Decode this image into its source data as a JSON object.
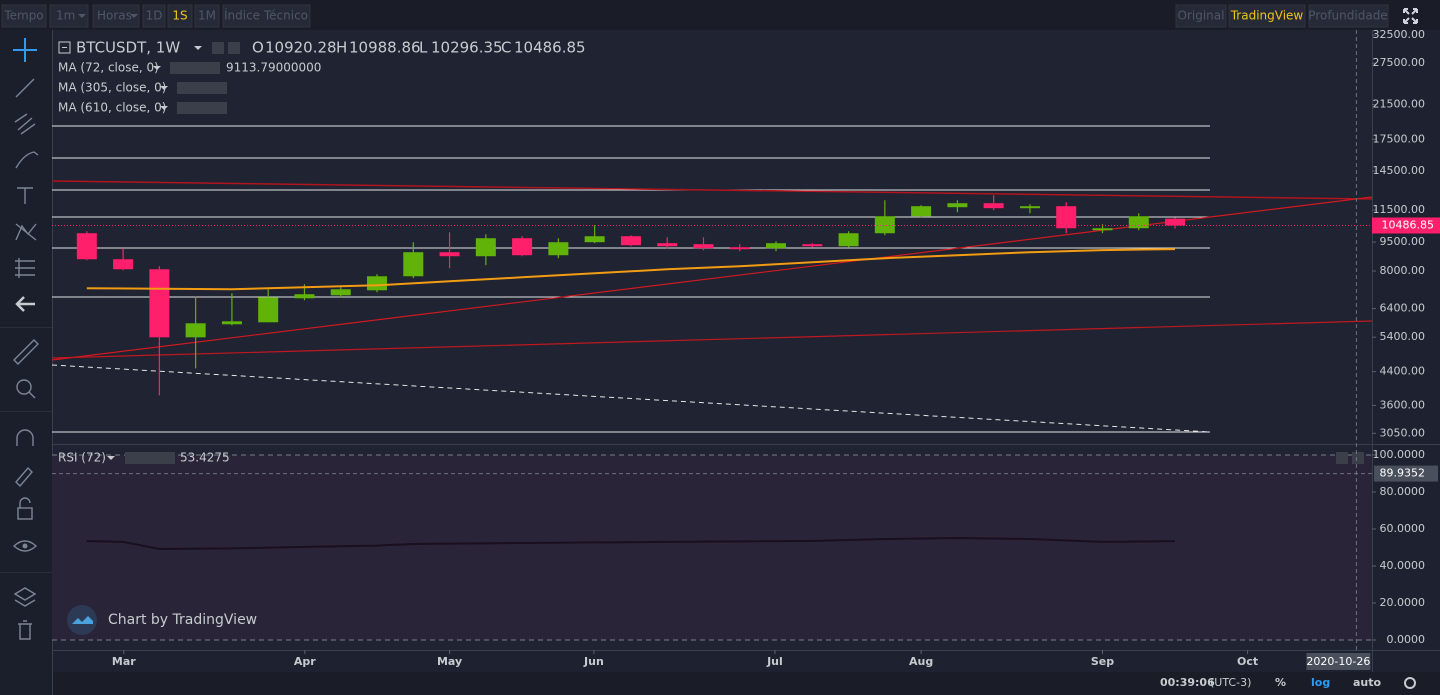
{
  "toolbar": {
    "left": [
      "Tempo",
      "1m",
      "Horas",
      "1D",
      "1S",
      "1M",
      "Índice Técnico"
    ],
    "left_active": 4,
    "right": [
      "Original",
      "TradingView",
      "Profundidade"
    ],
    "right_active": 1
  },
  "chart_data": [
    {
      "type": "candlestick",
      "title": "BTCUSDT, 1W",
      "legend_labels": [
        "O",
        "H",
        "L",
        "C"
      ],
      "x": [
        0,
        1,
        2,
        3,
        4,
        5,
        6,
        7,
        8,
        9,
        10,
        11,
        12,
        13,
        14,
        15,
        16,
        17,
        18,
        19,
        20,
        21,
        22,
        23,
        24,
        25,
        26,
        27,
        28,
        29,
        30
      ],
      "open": [
        10014,
        8581,
        8085,
        5396,
        5831,
        5900,
        6805,
        6927,
        7136,
        7755,
        8947,
        8736,
        9722,
        8788,
        9495,
        9838,
        9439,
        9383,
        9216,
        9162,
        9383,
        9270,
        10014,
        11080,
        11690,
        11971,
        11622,
        11760,
        10194,
        10316,
        10920.28
      ],
      "high": [
        10133,
        9162,
        8231,
        6886,
        7012,
        7179,
        7394,
        7265,
        7849,
        9495,
        10074,
        9955,
        9838,
        9722,
        10504,
        9896,
        9780,
        9780,
        9383,
        9551,
        9439,
        10133,
        12185,
        11830,
        12185,
        12556,
        11900,
        12041,
        10566,
        11278,
        10988.86
      ],
      "low": [
        8529,
        8037,
        3823,
        4487,
        5796,
        5900,
        6725,
        6845,
        7053,
        7664,
        8132,
        8282,
        8736,
        8632,
        9439,
        9270,
        9162,
        9054,
        9000,
        9000,
        9216,
        9216,
        9896,
        11015,
        11346,
        11483,
        11278,
        10014,
        10014,
        10194,
        10296.35
      ],
      "close": [
        8581,
        8085,
        5396,
        5865,
        5935,
        6845,
        6970,
        7179,
        7755,
        8947,
        8736,
        9722,
        8788,
        9495,
        9838,
        9328,
        9270,
        9162,
        9107,
        9439,
        9270,
        10014,
        11080,
        11760,
        11971,
        11622,
        11760,
        10316,
        10316,
        11080,
        10486.85
      ],
      "up_color": "#62b309",
      "down_color": "#ff1f6b",
      "log": true,
      "ylim": [
        2880,
        33500
      ],
      "yticks": [
        {
          "value": 32500,
          "label": "32500.00"
        },
        {
          "value": 27500,
          "label": "27500.00"
        },
        {
          "value": 21500,
          "label": "21500.00"
        },
        {
          "value": 17500,
          "label": "17500.00"
        },
        {
          "value": 14500,
          "label": "14500.00"
        },
        {
          "value": 11500,
          "label": "11500.00"
        },
        {
          "value": 9500,
          "label": "9500.00"
        },
        {
          "value": 8000,
          "label": "8000.00"
        },
        {
          "value": 6400,
          "label": "6400.00"
        },
        {
          "value": 5400,
          "label": "5400.00"
        },
        {
          "value": 4400,
          "label": "4400.00"
        },
        {
          "value": 3600,
          "label": "3600.00"
        },
        {
          "value": 3050,
          "label": "3050.00"
        }
      ],
      "xlim": [
        -0.96,
        35.43
      ],
      "xticks": [
        {
          "value": 1.02,
          "label": "Mar"
        },
        {
          "value": 6.01,
          "label": "Apr"
        },
        {
          "value": 10.0,
          "label": "May"
        },
        {
          "value": 13.98,
          "label": "Jun"
        },
        {
          "value": 18.97,
          "label": "Jul"
        },
        {
          "value": 23.0,
          "label": "Aug"
        },
        {
          "value": 28.0,
          "label": "Sep"
        },
        {
          "value": 32.0,
          "label": "Oct"
        }
      ],
      "indicators": [
        {
          "name": "MA (72, close, 0)",
          "color": "#f39c12",
          "x": [
            0,
            4,
            6,
            8,
            10,
            12,
            14,
            16,
            18,
            20,
            22,
            24,
            26,
            28,
            30
          ],
          "values": [
            7222,
            7180,
            7265,
            7352,
            7528,
            7709,
            7894,
            8085,
            8231,
            8430,
            8632,
            8788,
            8947,
            9060,
            9113.79
          ],
          "value_labels": [
            null,
            null,
            null,
            null,
            null,
            null,
            null,
            null,
            null,
            null,
            null,
            null,
            null,
            null,
            "9113.79000000"
          ]
        },
        {
          "name": "MA (305, close, 0)"
        },
        {
          "name": "MA (610, close, 0)"
        }
      ],
      "crosshair": {
        "x": 35.0,
        "x_label": "2020-10-26"
      }
    },
    {
      "type": "line",
      "title": "RSI (72)",
      "color": "#1a0f1d",
      "x": [
        0,
        1,
        2,
        4,
        6,
        8,
        9,
        12,
        16,
        20,
        22,
        24,
        26,
        28,
        30
      ],
      "values": [
        53.5,
        53.0,
        49.2,
        49.5,
        50.3,
        51.0,
        51.9,
        52.4,
        53.0,
        53.5,
        54.6,
        55.1,
        54.6,
        53.0,
        53.4275
      ],
      "ylim": [
        -5.4,
        104.3
      ],
      "xlim": [
        -0.96,
        35.43
      ],
      "yticks": [
        {
          "value": 100,
          "label": "100.0000"
        },
        {
          "value": 80,
          "label": "80.0000"
        },
        {
          "value": 60,
          "label": "60.0000"
        },
        {
          "value": 40,
          "label": "40.0000"
        },
        {
          "value": 20,
          "label": "20.0000"
        },
        {
          "value": 0,
          "label": "0.0000"
        }
      ],
      "crosshair_y": 89.9352,
      "watermark": "Chart by TradingView"
    }
  ],
  "status": {
    "time": "00:39:06",
    "zone": "(UTC-3)",
    "percent": "%",
    "log": "log",
    "auto": "auto"
  }
}
